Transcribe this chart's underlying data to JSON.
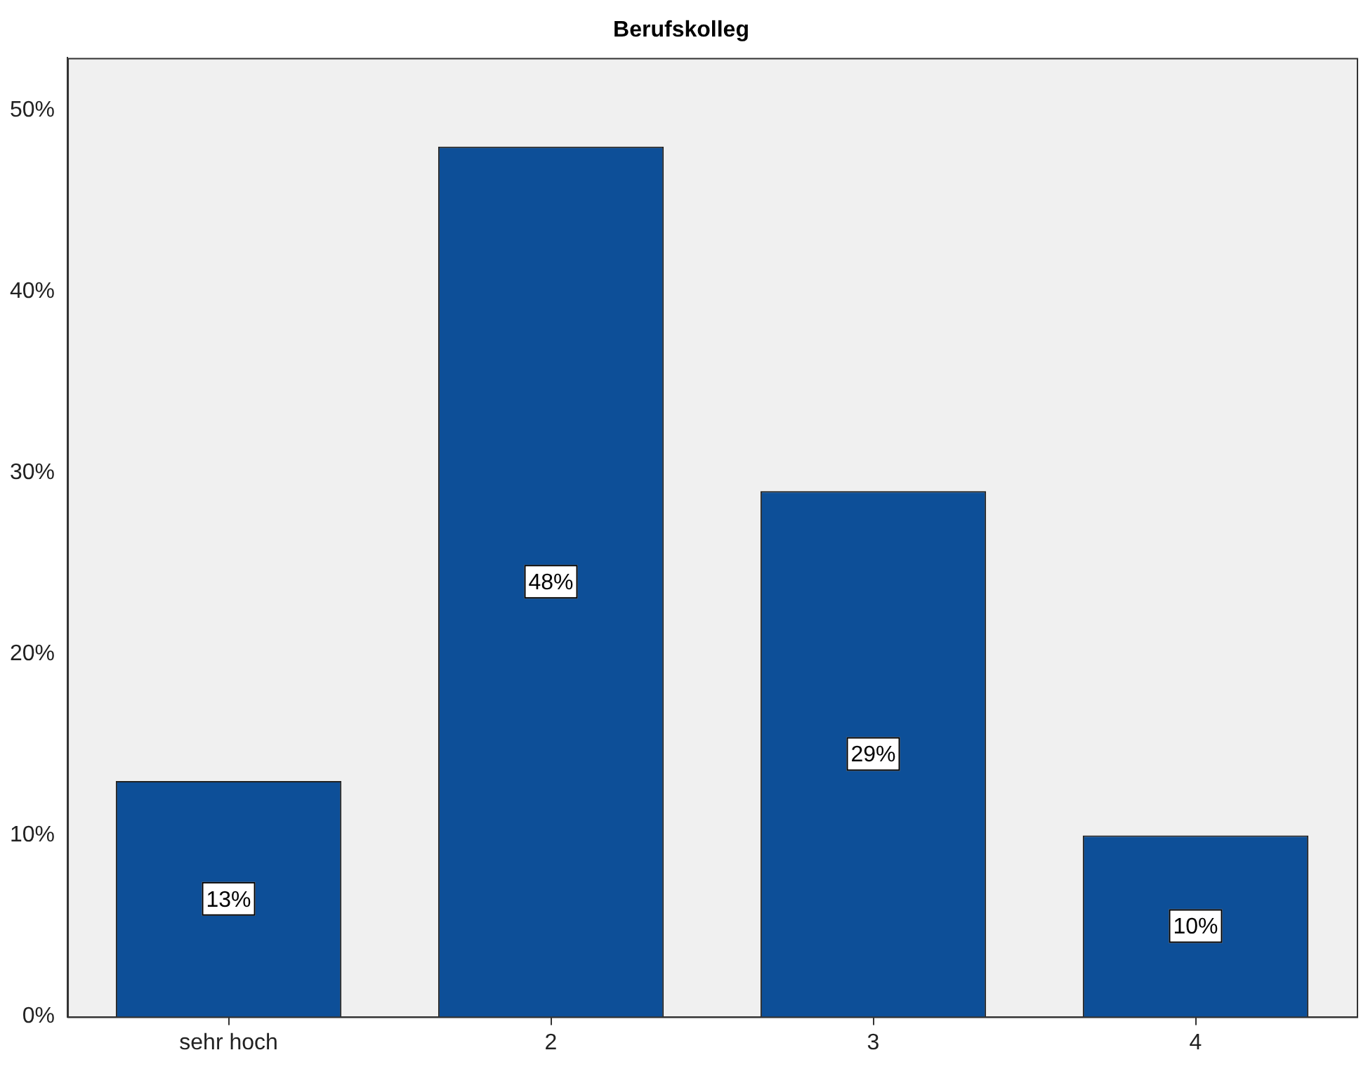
{
  "chart_data": {
    "type": "bar",
    "title": "Berufskolleg",
    "categories": [
      "sehr hoch",
      "2",
      "3",
      "4"
    ],
    "values": [
      13,
      48,
      29,
      10
    ],
    "value_labels": [
      "13%",
      "48%",
      "29%",
      "10%"
    ],
    "color": "#0d4f98",
    "ylim": [
      0,
      52.9
    ],
    "yticks": [
      {
        "value": 0,
        "label": "0%"
      },
      {
        "value": 10,
        "label": "10%"
      },
      {
        "value": 20,
        "label": "20%"
      },
      {
        "value": 30,
        "label": "30%"
      },
      {
        "value": 40,
        "label": "40%"
      },
      {
        "value": 50,
        "label": "50%"
      }
    ],
    "grid": false,
    "legend": false
  }
}
